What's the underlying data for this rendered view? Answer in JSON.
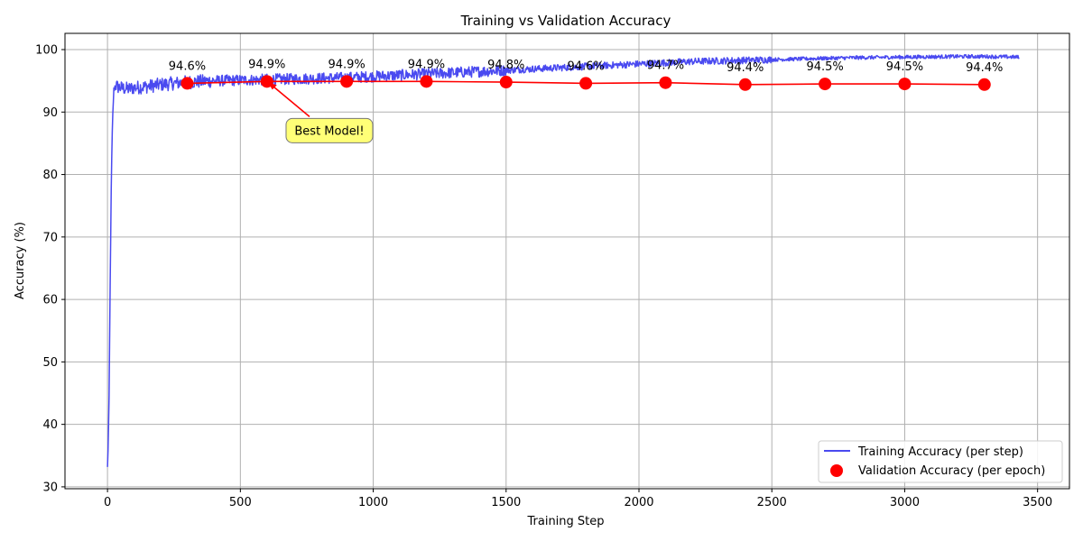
{
  "chart_data": {
    "type": "line",
    "title": "Training vs Validation Accuracy",
    "xlabel": "Training Step",
    "ylabel": "Accuracy (%)",
    "xlim": [
      -160,
      3620
    ],
    "ylim": [
      29.7,
      102.6
    ],
    "xticks": [
      0,
      500,
      1000,
      1500,
      2000,
      2500,
      3000,
      3500
    ],
    "yticks": [
      30,
      40,
      50,
      60,
      70,
      80,
      90,
      100
    ],
    "grid": true,
    "legend_position": "bottom-right",
    "series": [
      {
        "name": "Training Accuracy (per step)",
        "kind": "line",
        "color": "#4a4af0",
        "x": [
          0,
          3,
          6,
          9,
          12,
          15,
          18,
          21,
          24,
          27,
          30,
          40,
          60,
          80,
          100,
          150,
          200,
          250,
          300,
          400,
          500,
          600,
          700,
          800,
          900,
          1000,
          1100,
          1200,
          1300,
          1400,
          1500,
          1600,
          1700,
          1800,
          1900,
          2000,
          2100,
          2200,
          2300,
          2400,
          2500,
          2600,
          2700,
          2800,
          2900,
          3000,
          3100,
          3200,
          3300,
          3430
        ],
        "y": [
          33.0,
          37.5,
          44.0,
          58.0,
          70.0,
          80.5,
          86.5,
          91.0,
          93.5,
          94.0,
          94.3,
          94.0,
          93.8,
          93.7,
          93.9,
          94.1,
          94.4,
          94.6,
          94.8,
          95.0,
          95.1,
          95.2,
          95.3,
          95.4,
          95.5,
          95.7,
          95.9,
          96.1,
          96.3,
          96.5,
          96.7,
          96.9,
          97.1,
          97.3,
          97.5,
          97.7,
          97.9,
          98.1,
          98.2,
          98.3,
          98.4,
          98.5,
          98.6,
          98.7,
          98.75,
          98.8,
          98.85,
          98.9,
          98.9,
          98.8
        ]
      },
      {
        "name": "Validation Accuracy (per epoch)",
        "kind": "line+markers",
        "color": "#ff0000",
        "x": [
          300,
          600,
          900,
          1200,
          1500,
          1800,
          2100,
          2400,
          2700,
          3000,
          3300
        ],
        "y": [
          94.6,
          94.9,
          94.9,
          94.9,
          94.8,
          94.6,
          94.7,
          94.4,
          94.5,
          94.5,
          94.4
        ],
        "labels": [
          "94.6%",
          "94.9%",
          "94.9%",
          "94.9%",
          "94.8%",
          "94.6%",
          "94.7%",
          "94.4%",
          "94.5%",
          "94.5%",
          "94.4%"
        ]
      }
    ],
    "annotation": {
      "text": "Best Model!",
      "target_x": 600,
      "target_y": 94.9,
      "text_x": 835,
      "text_y": 87.1
    }
  }
}
